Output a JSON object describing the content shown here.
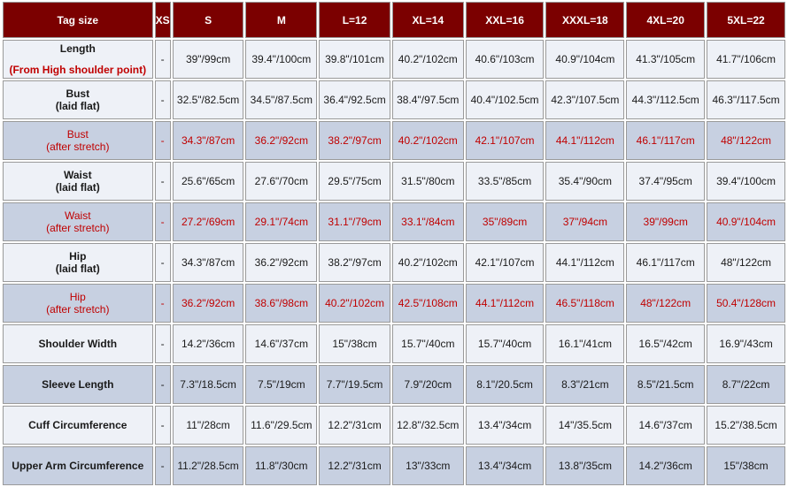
{
  "header": {
    "tag_size": "Tag size",
    "sizes": [
      "XS",
      "S",
      "M",
      "L=12",
      "XL=14",
      "XXL=16",
      "XXXL=18",
      "4XL=20",
      "5XL=22"
    ]
  },
  "rows": [
    {
      "label1": "Length",
      "label2": "",
      "sub_red": "(From High shoulder point)",
      "style": "light",
      "values": [
        "-",
        "39\"/99cm",
        "39.4\"/100cm",
        "39.8\"/101cm",
        "40.2\"/102cm",
        "40.6\"/103cm",
        "40.9\"/104cm",
        "41.3\"/105cm",
        "41.7\"/106cm"
      ]
    },
    {
      "label1": "Bust",
      "label2": "(laid flat)",
      "style": "light",
      "values": [
        "-",
        "32.5\"/82.5cm",
        "34.5\"/87.5cm",
        "36.4\"/92.5cm",
        "38.4\"/97.5cm",
        "40.4\"/102.5cm",
        "42.3\"/107.5cm",
        "44.3\"/112.5cm",
        "46.3\"/117.5cm"
      ]
    },
    {
      "label1": "Bust",
      "label2": "(after stretch)",
      "style": "dark red",
      "values": [
        "-",
        "34.3\"/87cm",
        "36.2\"/92cm",
        "38.2\"/97cm",
        "40.2\"/102cm",
        "42.1\"/107cm",
        "44.1\"/112cm",
        "46.1\"/117cm",
        "48\"/122cm"
      ]
    },
    {
      "label1": "Waist",
      "label2": "(laid flat)",
      "style": "light",
      "values": [
        "-",
        "25.6\"/65cm",
        "27.6\"/70cm",
        "29.5\"/75cm",
        "31.5\"/80cm",
        "33.5\"/85cm",
        "35.4\"/90cm",
        "37.4\"/95cm",
        "39.4\"/100cm"
      ]
    },
    {
      "label1": "Waist",
      "label2": "(after stretch)",
      "style": "dark red",
      "values": [
        "-",
        "27.2\"/69cm",
        "29.1\"/74cm",
        "31.1\"/79cm",
        "33.1\"/84cm",
        "35\"/89cm",
        "37\"/94cm",
        "39\"/99cm",
        "40.9\"/104cm"
      ]
    },
    {
      "label1": "Hip",
      "label2": "(laid flat)",
      "style": "light",
      "values": [
        "-",
        "34.3\"/87cm",
        "36.2\"/92cm",
        "38.2\"/97cm",
        "40.2\"/102cm",
        "42.1\"/107cm",
        "44.1\"/112cm",
        "46.1\"/117cm",
        "48\"/122cm"
      ]
    },
    {
      "label1": "Hip",
      "label2": "(after stretch)",
      "style": "dark red",
      "values": [
        "-",
        "36.2\"/92cm",
        "38.6\"/98cm",
        "40.2\"/102cm",
        "42.5\"/108cm",
        "44.1\"/112cm",
        "46.5\"/118cm",
        "48\"/122cm",
        "50.4\"/128cm"
      ]
    },
    {
      "label1": "Shoulder Width",
      "label2": "",
      "style": "light",
      "values": [
        "-",
        "14.2\"/36cm",
        "14.6\"/37cm",
        "15\"/38cm",
        "15.7\"/40cm",
        "15.7\"/40cm",
        "16.1\"/41cm",
        "16.5\"/42cm",
        "16.9\"/43cm"
      ]
    },
    {
      "label1": "Sleeve Length",
      "label2": "",
      "style": "dark",
      "values": [
        "-",
        "7.3\"/18.5cm",
        "7.5\"/19cm",
        "7.7\"/19.5cm",
        "7.9\"/20cm",
        "8.1\"/20.5cm",
        "8.3\"/21cm",
        "8.5\"/21.5cm",
        "8.7\"/22cm"
      ]
    },
    {
      "label1": "Cuff Circumference",
      "label2": "",
      "style": "light",
      "values": [
        "-",
        "11\"/28cm",
        "11.6\"/29.5cm",
        "12.2\"/31cm",
        "12.8\"/32.5cm",
        "13.4\"/34cm",
        "14\"/35.5cm",
        "14.6\"/37cm",
        "15.2\"/38.5cm"
      ]
    },
    {
      "label1": "Upper Arm Circumference",
      "label2": "",
      "style": "dark",
      "values": [
        "-",
        "11.2\"/28.5cm",
        "11.8\"/30cm",
        "12.2\"/31cm",
        "13\"/33cm",
        "13.4\"/34cm",
        "13.8\"/35cm",
        "14.2\"/36cm",
        "15\"/38cm"
      ]
    }
  ],
  "colors": {
    "header_bg": "#7b0000",
    "header_text": "#ffffff",
    "row_light": "#eef1f7",
    "row_dark": "#c7d0e1",
    "red_text": "#c00000"
  }
}
